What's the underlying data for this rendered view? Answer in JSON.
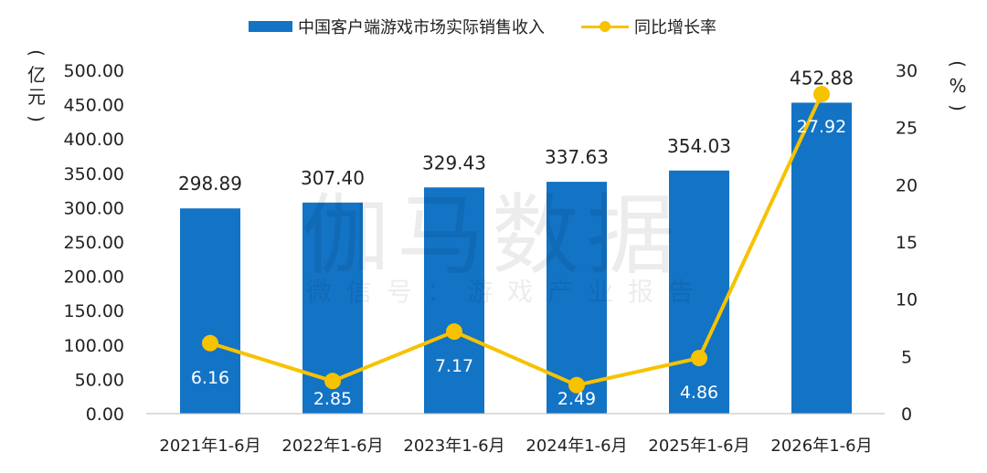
{
  "legend": {
    "bar_label": "中国客户端游戏市场实际销售收入",
    "line_label": "同比增长率"
  },
  "left_unit": [
    "(",
    "亿",
    "元",
    ")"
  ],
  "right_unit": [
    "(",
    "%",
    ")"
  ],
  "watermark": {
    "title": "伽马数据",
    "subtitle": "微信号：游戏产业报告"
  },
  "colors": {
    "bar": "#1373c5",
    "line": "#f7c200",
    "bar_label_text": "#ffffff",
    "axis_text": "#222222"
  },
  "chart_data": {
    "type": "bar",
    "categories": [
      "2021年1-6月",
      "2022年1-6月",
      "2023年1-6月",
      "2024年1-6月",
      "2025年1-6月",
      "2026年1-6月"
    ],
    "series": [
      {
        "name": "中国客户端游戏市场实际销售收入",
        "type": "bar",
        "axis": "left",
        "values": [
          298.89,
          307.4,
          329.43,
          337.63,
          354.03,
          452.88
        ],
        "labels": [
          "298.89",
          "307.40",
          "329.43",
          "337.63",
          "354.03",
          "452.88"
        ]
      },
      {
        "name": "同比增长率",
        "type": "line",
        "axis": "right",
        "values": [
          6.16,
          2.85,
          7.17,
          2.49,
          4.86,
          27.92
        ],
        "labels": [
          "6.16",
          "2.85",
          "7.17",
          "2.49",
          "4.86",
          "27.92"
        ]
      }
    ],
    "y_left": {
      "ylim": [
        0,
        500
      ],
      "ticks": [
        "0.00",
        "50.00",
        "100.00",
        "150.00",
        "200.00",
        "250.00",
        "300.00",
        "350.00",
        "400.00",
        "450.00",
        "500.00"
      ]
    },
    "y_right": {
      "ylim": [
        0,
        30
      ],
      "ticks": [
        "0",
        "5",
        "10",
        "15",
        "20",
        "25",
        "30"
      ]
    },
    "grid": false,
    "legend_position": "top-center"
  }
}
